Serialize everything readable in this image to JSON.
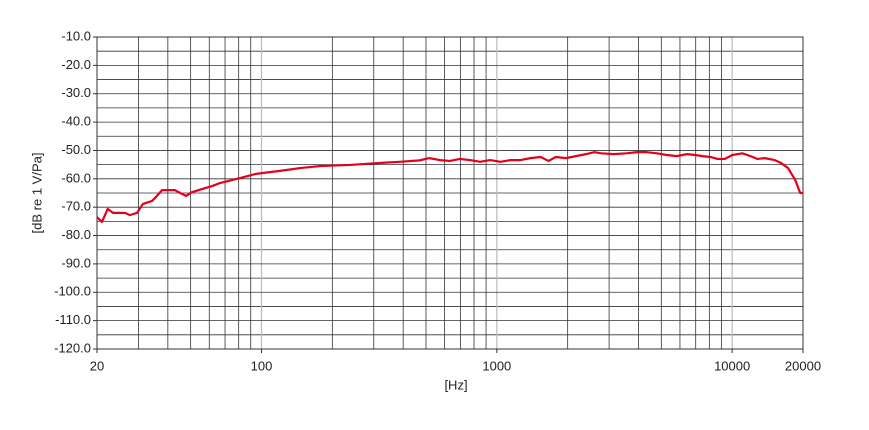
{
  "chart_data": {
    "type": "line",
    "xscale": "log",
    "xlabel": "[Hz]",
    "ylabel": "[dB re 1 V/Pa]",
    "xlim": [
      20,
      20000
    ],
    "ylim": [
      -120,
      -10
    ],
    "xticks": [
      20,
      100,
      1000,
      10000,
      20000
    ],
    "xminorticks": [
      30,
      40,
      50,
      60,
      70,
      80,
      90,
      200,
      300,
      400,
      500,
      600,
      700,
      800,
      900,
      2000,
      3000,
      4000,
      5000,
      6000,
      7000,
      8000,
      9000
    ],
    "xgridticks": [
      100,
      1000,
      10000
    ],
    "yticks": [
      {
        "value": -10,
        "label": "-10.0"
      },
      {
        "value": -20,
        "label": "-20.0"
      },
      {
        "value": -30,
        "label": "-30.0"
      },
      {
        "value": -40,
        "label": "-40.0"
      },
      {
        "value": -50,
        "label": "-50.0"
      },
      {
        "value": -60,
        "label": "-60.0"
      },
      {
        "value": -70,
        "label": "-70.0"
      },
      {
        "value": -80,
        "label": "-80.0"
      },
      {
        "value": -90,
        "label": "-90.0"
      },
      {
        "value": -100,
        "label": "-100.0"
      },
      {
        "value": -110,
        "label": "-110.0"
      },
      {
        "value": -120,
        "label": "-120.0"
      }
    ],
    "yminorticks": [
      -15,
      -25,
      -35,
      -45,
      -55,
      -65,
      -75,
      -85,
      -95,
      -105,
      -115
    ],
    "grid": true,
    "major_grid_color": "#bbbbbb",
    "minor_grid_color": "#333333",
    "series": [
      {
        "color": "#e3001b",
        "x": [
          20,
          21,
          22.2,
          23.4,
          26.3,
          27.6,
          29.6,
          31.3,
          34.3,
          35.6,
          37.8,
          42.9,
          45.1,
          47.9,
          50.6,
          55.9,
          61.9,
          66.6,
          72.1,
          81.4,
          94.3,
          100,
          120,
          146,
          177,
          238,
          318,
          387,
          470,
          516,
          573,
          631,
          697,
          769,
          849,
          937,
          1035,
          1142,
          1260,
          1391,
          1535,
          1660,
          1780,
          1965,
          2170,
          2390,
          2595,
          2780,
          3130,
          3560,
          3930,
          4330,
          4780,
          5280,
          5820,
          6430,
          6970,
          7470,
          8080,
          8660,
          9290,
          10020,
          11050,
          11960,
          12820,
          13750,
          15170,
          16100,
          17280,
          18530,
          19460,
          20000
        ],
        "values": [
          -73.5,
          -75.2,
          -70.6,
          -72,
          -72,
          -72.8,
          -72,
          -68.9,
          -67.8,
          -66.4,
          -64,
          -64,
          -65,
          -66,
          -64.7,
          -63.6,
          -62.5,
          -61.5,
          -60.8,
          -59.7,
          -58.3,
          -58,
          -57.2,
          -56.2,
          -55.5,
          -55.1,
          -54.4,
          -54,
          -53.5,
          -52.7,
          -53.4,
          -53.7,
          -53,
          -53.4,
          -54,
          -53.4,
          -54,
          -53.4,
          -53.4,
          -52.7,
          -52.3,
          -53.7,
          -52.3,
          -52.7,
          -52,
          -51.3,
          -50.6,
          -51,
          -51.3,
          -51,
          -50.6,
          -50.6,
          -51,
          -51.6,
          -52,
          -51.3,
          -51.6,
          -52,
          -52.3,
          -53,
          -53,
          -51.6,
          -51,
          -52,
          -53,
          -52.7,
          -53.4,
          -54.4,
          -56.2,
          -60.4,
          -65,
          -65
        ]
      }
    ]
  }
}
